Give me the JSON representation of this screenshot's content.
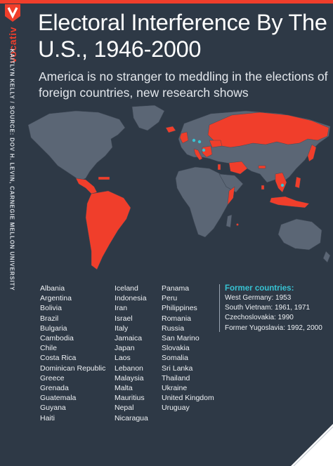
{
  "brand": {
    "name": "vocativ",
    "accent_color": "#f03e2b"
  },
  "header": {
    "title": "Electoral Interference By The U.S., 1946-2000",
    "subtitle": "America is no stranger to meddling in the elections of foreign countries, new research shows"
  },
  "credit": "KAITLYN KELLY / SOURCE: DOV H. LEVIN, CARNEGIE MELLON UNIVERSITY",
  "map": {
    "highlight_color": "#f03e2b",
    "land_color": "#5b6675",
    "ocean_color": "#2e3946",
    "former_country_marker_color": "#38c3d3"
  },
  "countries": {
    "column_1": [
      "Albania",
      "Argentina",
      "Bolivia",
      "Brazil",
      "Bulgaria",
      "Cambodia",
      "Chile",
      "Costa Rica",
      "Dominican Republic",
      "Greece",
      "Grenada",
      "Guatemala",
      "Guyana",
      "Haiti"
    ],
    "column_2": [
      "Iceland",
      "Indonesia",
      "Iran",
      "Israel",
      "Italy",
      "Jamaica",
      "Japan",
      "Laos",
      "Lebanon",
      "Malaysia",
      "Malta",
      "Mauritius",
      "Nepal",
      "Nicaragua"
    ],
    "column_3": [
      "Panama",
      "Peru",
      "Philippines",
      "Romania",
      "Russia",
      "San Marino",
      "Slovakia",
      "Somalia",
      "Sri Lanka",
      "Thailand",
      "Ukraine",
      "United Kingdom",
      "Uruguay"
    ]
  },
  "former_countries": {
    "heading": "Former countries:",
    "items": [
      "West Germany: 1953",
      "South Vietnam: 1961, 1971",
      "Czechoslovakia: 1990",
      "Former Yugoslavia: 1992, 2000"
    ]
  }
}
